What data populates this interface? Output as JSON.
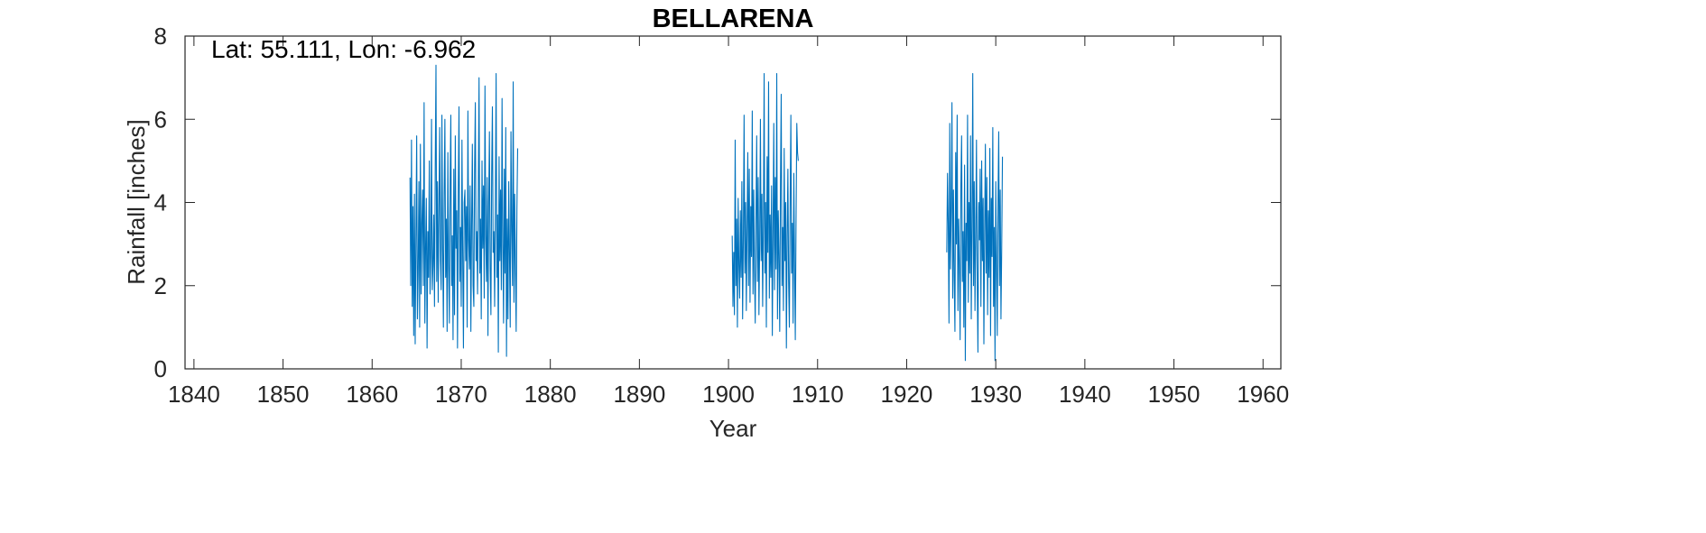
{
  "chart_data": {
    "type": "line",
    "title": "BELLARENA",
    "annotation": "Lat: 55.111, Lon: -6.962",
    "xlabel": "Year",
    "ylabel": "Rainfall [inches]",
    "xlim": [
      1839,
      1962
    ],
    "ylim": [
      0,
      8
    ],
    "xticks": [
      1840,
      1850,
      1860,
      1870,
      1880,
      1890,
      1900,
      1910,
      1920,
      1930,
      1940,
      1950,
      1960
    ],
    "yticks": [
      0,
      2,
      4,
      6,
      8
    ],
    "grid": false,
    "line_color": "#0072BD",
    "series": [
      {
        "segments": [
          {
            "x_start": 1864.25,
            "x_step": 0.0833333,
            "values": [
              4.6,
              2.0,
              5.5,
              1.5,
              3.9,
              0.8,
              4.2,
              0.6,
              3.1,
              5.6,
              1.2,
              2.3,
              4.5,
              1.0,
              5.4,
              1.8,
              3.5,
              4.3,
              2.0,
              6.4,
              1.1,
              2.9,
              4.1,
              0.5,
              3.3,
              2.2,
              5.0,
              1.8,
              2.7,
              6.0,
              1.9,
              2.5,
              3.7,
              1.5,
              4.8,
              7.3,
              2.1,
              4.5,
              1.6,
              3.9,
              5.8,
              2.6,
              1.9,
              6.1,
              3.0,
              1.0,
              4.2,
              6.0,
              2.2,
              3.6,
              0.9,
              5.2,
              2.5,
              1.1,
              4.4,
              6.1,
              2.0,
              3.2,
              0.7,
              4.8,
              1.3,
              5.6,
              2.9,
              3.8,
              0.5,
              4.2,
              6.3,
              2.1,
              3.4,
              1.5,
              5.5,
              2.7,
              0.5,
              4.0,
              4.3,
              2.6,
              3.9,
              1.0,
              6.2,
              3.1,
              2.4,
              4.4,
              0.9,
              3.5,
              5.4,
              2.0,
              1.5,
              4.8,
              6.4,
              2.6,
              3.3,
              1.8,
              4.1,
              7.0,
              2.3,
              3.6,
              1.2,
              5.0,
              2.9,
              4.4,
              1.7,
              6.8,
              3.2,
              2.1,
              4.6,
              0.8,
              3.9,
              5.7,
              2.4,
              1.3,
              4.7,
              6.3,
              2.8,
              3.3,
              1.5,
              4.0,
              7.1,
              2.2,
              3.7,
              0.4,
              5.1,
              2.6,
              4.3,
              1.9,
              6.5,
              3.0,
              1.1,
              4.8,
              2.3,
              5.8,
              0.3,
              3.6,
              1.2,
              4.5,
              2.8,
              1.0,
              5.7,
              3.3,
              2.0,
              6.9,
              1.6,
              4.2,
              2.5,
              0.9,
              3.8,
              5.3
            ]
          },
          {
            "x_start": 1900.417,
            "x_step": 0.0833333,
            "values": [
              3.2,
              1.5,
              2.8,
              1.3,
              5.5,
              2.0,
              3.6,
              1.0,
              4.1,
              2.5,
              1.7,
              3.8,
              2.2,
              4.5,
              1.2,
              3.1,
              6.1,
              2.3,
              4.0,
              1.4,
              3.4,
              5.2,
              2.0,
              4.8,
              1.6,
              3.9,
              2.7,
              6.2,
              1.8,
              4.3,
              2.4,
              1.1,
              3.6,
              5.6,
              2.1,
              4.6,
              1.3,
              3.0,
              6.0,
              2.6,
              4.2,
              1.5,
              3.5,
              7.1,
              2.3,
              4.0,
              1.0,
              5.1,
              2.8,
              6.9,
              1.7,
              3.7,
              2.2,
              4.4,
              0.8,
              3.3,
              5.9,
              1.9,
              4.6,
              2.4,
              7.1,
              1.2,
              3.8,
              2.7,
              0.9,
              4.4,
              6.6,
              2.0,
              3.4,
              1.4,
              5.3,
              2.6,
              4.0,
              0.5,
              3.2,
              4.8,
              2.1,
              1.0,
              3.9,
              6.1,
              2.3,
              3.5,
              1.1,
              4.7,
              2.5,
              0.7,
              3.6,
              5.9,
              5.2,
              5.0
            ]
          },
          {
            "x_start": 1924.5,
            "x_step": 0.0833333,
            "values": [
              2.8,
              4.7,
              3.5,
              1.1,
              5.9,
              2.4,
              3.9,
              6.4,
              1.7,
              4.3,
              2.2,
              0.9,
              5.2,
              3.0,
              6.1,
              1.4,
              3.6,
              2.5,
              0.7,
              4.4,
              5.6,
              2.1,
              3.3,
              1.0,
              4.9,
              0.2,
              3.5,
              2.6,
              6.1,
              1.6,
              4.0,
              2.3,
              5.6,
              1.2,
              3.4,
              7.1,
              2.0,
              4.5,
              1.4,
              3.2,
              5.5,
              2.1,
              0.4,
              4.0,
              3.1,
              4.8,
              1.5,
              5.0,
              2.6,
              4.1,
              0.6,
              3.3,
              5.4,
              2.3,
              4.6,
              1.3,
              3.8,
              2.2,
              5.3,
              0.8,
              4.1,
              2.7,
              5.8,
              1.5,
              3.4,
              0.2,
              4.5,
              2.5,
              0.8,
              3.9,
              5.7,
              2.0,
              4.3,
              1.2,
              2.9,
              5.1
            ]
          }
        ]
      }
    ]
  }
}
